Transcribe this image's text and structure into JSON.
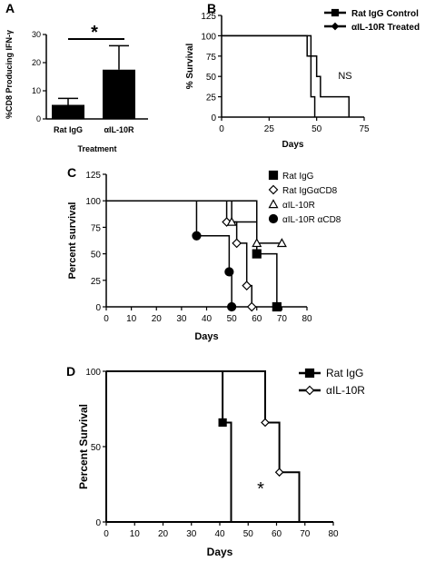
{
  "chart_data": [
    {
      "id": "A",
      "panel_label": "A",
      "type": "bar",
      "categories": [
        "Rat IgG",
        "αIL-10R"
      ],
      "values": [
        5,
        17.5
      ],
      "errors": [
        2.3,
        8.5
      ],
      "ylabel": "%CD8 Producing IFN-γ",
      "xlabel": "Treatment",
      "ylim": [
        0,
        30
      ],
      "yticks": [
        0,
        10,
        20,
        30
      ],
      "significance": "*",
      "bar_color": "#000000"
    },
    {
      "id": "B",
      "panel_label": "B",
      "type": "line",
      "step": true,
      "xlabel": "Days",
      "ylabel": "% Survival",
      "xlim": [
        0,
        75
      ],
      "ylim": [
        0,
        125
      ],
      "xticks": [
        0,
        25,
        50,
        75
      ],
      "yticks": [
        0,
        25,
        50,
        75,
        100,
        125
      ],
      "annotation": "NS",
      "legend_position": "top-right",
      "series": [
        {
          "name": "Rat IgG Control",
          "marker": "square",
          "x": [
            0,
            47,
            50,
            52,
            67
          ],
          "y": [
            100,
            75,
            50,
            25,
            0
          ]
        },
        {
          "name": "αIL-10R Treated",
          "marker": "diamond",
          "x": [
            0,
            45,
            47,
            49
          ],
          "y": [
            100,
            75,
            25,
            0
          ]
        }
      ]
    },
    {
      "id": "C",
      "panel_label": "C",
      "type": "line",
      "step": true,
      "xlabel": "Days",
      "ylabel": "Percent survival",
      "xlim": [
        0,
        80
      ],
      "ylim": [
        0,
        125
      ],
      "xticks": [
        0,
        10,
        20,
        30,
        40,
        50,
        60,
        70,
        80
      ],
      "yticks": [
        0,
        25,
        50,
        75,
        100,
        125
      ],
      "legend_position": "top-right",
      "series": [
        {
          "name": "Rat IgG",
          "marker": "filled-square",
          "x": [
            0,
            60,
            68
          ],
          "y": [
            100,
            50,
            0
          ]
        },
        {
          "name": "Rat IgGαCD8",
          "marker": "open-diamond",
          "x": [
            0,
            48,
            52,
            56,
            58
          ],
          "y": [
            100,
            80,
            60,
            20,
            0
          ]
        },
        {
          "name": "αIL-10R",
          "marker": "open-triangle",
          "x": [
            0,
            50,
            60,
            70
          ],
          "y": [
            100,
            80,
            60,
            60
          ]
        },
        {
          "name": "αIL-10R αCD8",
          "marker": "filled-circle",
          "x": [
            0,
            36,
            49,
            50
          ],
          "y": [
            100,
            67,
            33,
            0
          ]
        }
      ]
    },
    {
      "id": "D",
      "panel_label": "D",
      "type": "line",
      "step": true,
      "xlabel": "Days",
      "ylabel": "Percent Survival",
      "xlim": [
        0,
        80
      ],
      "ylim": [
        0,
        100
      ],
      "xticks": [
        0,
        10,
        20,
        30,
        40,
        50,
        60,
        70,
        80
      ],
      "yticks": [
        0,
        50,
        100
      ],
      "annotation": "*",
      "legend_position": "top-right",
      "series": [
        {
          "name": "Rat IgG",
          "marker": "filled-square",
          "x": [
            0,
            41,
            44
          ],
          "y": [
            100,
            66,
            0
          ]
        },
        {
          "name": "αIL-10R",
          "marker": "open-diamond",
          "x": [
            0,
            56,
            61,
            68
          ],
          "y": [
            100,
            66,
            33,
            0
          ]
        }
      ]
    }
  ]
}
